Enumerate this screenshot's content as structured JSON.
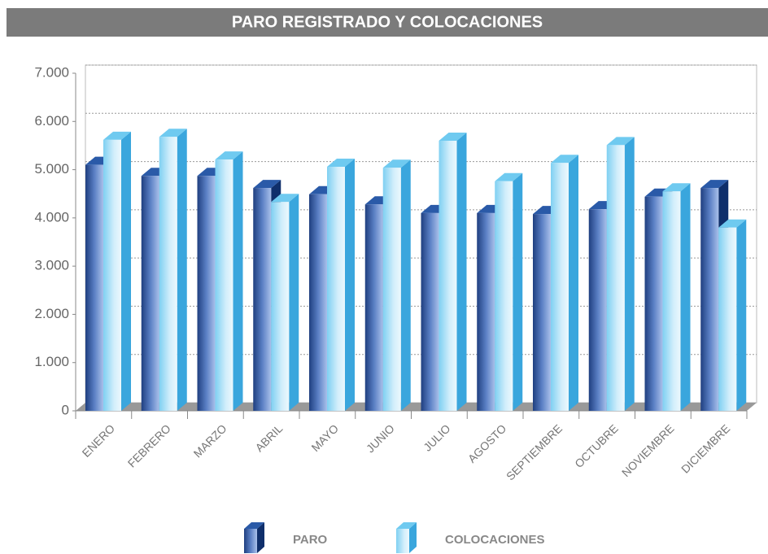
{
  "chart_data": {
    "type": "bar3d",
    "title": "PARO REGISTRADO Y COLOCACIONES",
    "categories": [
      "ENERO",
      "FEBRERO",
      "MARZO",
      "ABRIL",
      "MAYO",
      "JUNIO",
      "JULIO",
      "AGOSTO",
      "SEPTIEMBRE",
      "OCTUBRE",
      "NOVIEMBRE",
      "DICIEMBRE"
    ],
    "series": [
      {
        "name": "PARO",
        "color": "#2b56a0",
        "values": [
          5100,
          4870,
          4870,
          4620,
          4490,
          4280,
          4100,
          4100,
          4080,
          4180,
          4440,
          4620
        ]
      },
      {
        "name": "COLOCACIONES",
        "color": "#5cc3ee",
        "values": [
          5620,
          5680,
          5210,
          4330,
          5060,
          5040,
          5600,
          4760,
          5140,
          5510,
          4550,
          3800
        ]
      }
    ],
    "ylim": [
      0,
      7000
    ],
    "yticks": [
      0,
      {
        "value": 1000,
        "label": "1.000"
      },
      {
        "value": 2000,
        "label": "2.000"
      },
      {
        "value": 3000,
        "label": "3.000"
      },
      {
        "value": 4000,
        "label": "4.000"
      },
      {
        "value": 5000,
        "label": "5.000"
      },
      {
        "value": 6000,
        "label": "6.000"
      },
      {
        "value": 7000,
        "label": "7.000"
      }
    ],
    "grid": true,
    "legend": "bottom"
  }
}
